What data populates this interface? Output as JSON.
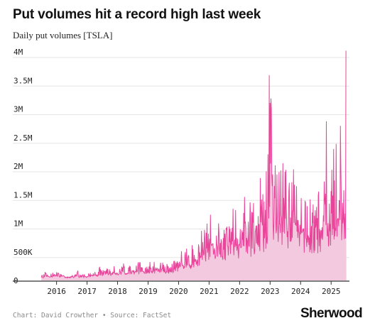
{
  "header": {
    "title": "Put volumes hit a record high last week",
    "subtitle": "Daily put volumes [TSLA]"
  },
  "footer": {
    "source": "Chart: David Crowther • Source: FactSet",
    "brand": "Sherwood"
  },
  "colors": {
    "line": "#e8449a",
    "area": "#f2c9de",
    "grid": "#e6e6e6",
    "axis": "#333333"
  },
  "chart_data": {
    "type": "area",
    "title": "Put volumes hit a record high last week",
    "subtitle": "Daily put volumes [TSLA]",
    "xlabel": "",
    "ylabel": "",
    "x_domain": [
      2015.45,
      2025.6
    ],
    "ylim": [
      0,
      4000000
    ],
    "yticks": [
      {
        "value": 0,
        "label": "0"
      },
      {
        "value": 500000,
        "label": "500K"
      },
      {
        "value": 1000000,
        "label": "1M"
      },
      {
        "value": 1500000,
        "label": "1.5M"
      },
      {
        "value": 2000000,
        "label": "2M"
      },
      {
        "value": 2500000,
        "label": "2.5M"
      },
      {
        "value": 3000000,
        "label": "3M"
      },
      {
        "value": 3500000,
        "label": "3.5M"
      },
      {
        "value": 4000000,
        "label": "4M"
      }
    ],
    "xticks": [
      {
        "value": 2016,
        "label": "2016"
      },
      {
        "value": 2017,
        "label": "2017"
      },
      {
        "value": 2018,
        "label": "2018"
      },
      {
        "value": 2019,
        "label": "2019"
      },
      {
        "value": 2020,
        "label": "2020"
      },
      {
        "value": 2021,
        "label": "2021"
      },
      {
        "value": 2022,
        "label": "2022"
      },
      {
        "value": 2023,
        "label": "2023"
      },
      {
        "value": 2024,
        "label": "2024"
      },
      {
        "value": 2025,
        "label": "2025"
      }
    ],
    "grid": true,
    "series": [
      {
        "x": [
          2015.5,
          2015.6,
          2015.7,
          2015.8,
          2015.9,
          2016.0,
          2016.1,
          2016.2,
          2016.3,
          2016.4,
          2016.5,
          2016.6,
          2016.7,
          2016.8,
          2016.9,
          2017.0,
          2017.1,
          2017.2,
          2017.3,
          2017.4,
          2017.5,
          2017.6,
          2017.7,
          2017.8,
          2017.9,
          2018.0,
          2018.1,
          2018.2,
          2018.3,
          2018.4,
          2018.5,
          2018.6,
          2018.7,
          2018.8,
          2018.9,
          2019.0,
          2019.1,
          2019.2,
          2019.3,
          2019.4,
          2019.5,
          2019.6,
          2019.7,
          2019.8,
          2019.9,
          2020.0,
          2020.1,
          2020.2,
          2020.3,
          2020.4,
          2020.5,
          2020.6,
          2020.7,
          2020.8,
          2020.9,
          2021.0,
          2021.1,
          2021.2,
          2021.3,
          2021.4,
          2021.5,
          2021.6,
          2021.7,
          2021.8,
          2021.9,
          2022.0,
          2022.1,
          2022.2,
          2022.3,
          2022.4,
          2022.5,
          2022.6,
          2022.7,
          2022.8,
          2022.9,
          2022.95,
          2023.0,
          2023.1,
          2023.2,
          2023.3,
          2023.4,
          2023.5,
          2023.6,
          2023.7,
          2023.8,
          2023.9,
          2024.0,
          2024.1,
          2024.2,
          2024.3,
          2024.4,
          2024.5,
          2024.6,
          2024.7,
          2024.8,
          2024.9,
          2025.0,
          2025.1,
          2025.2,
          2025.3,
          2025.35,
          2025.4,
          2025.45,
          2025.5
        ],
        "values": [
          60000,
          80000,
          90000,
          70000,
          110000,
          100000,
          80000,
          90000,
          70000,
          60000,
          80000,
          70000,
          90000,
          60000,
          80000,
          70000,
          90000,
          110000,
          100000,
          130000,
          110000,
          160000,
          120000,
          140000,
          130000,
          150000,
          170000,
          190000,
          160000,
          180000,
          200000,
          170000,
          230000,
          190000,
          160000,
          170000,
          180000,
          210000,
          190000,
          230000,
          200000,
          180000,
          170000,
          220000,
          230000,
          250000,
          330000,
          300000,
          350000,
          320000,
          380000,
          420000,
          470000,
          520000,
          560000,
          620000,
          700000,
          640000,
          690000,
          580000,
          620000,
          660000,
          720000,
          800000,
          780000,
          760000,
          820000,
          860000,
          900000,
          960000,
          880000,
          840000,
          1000000,
          1150000,
          1500000,
          1900000,
          2500000,
          1850000,
          1300000,
          1350000,
          1250000,
          1400000,
          1200000,
          1350000,
          1300000,
          1250000,
          1200000,
          1050000,
          1000000,
          1000000,
          950000,
          1050000,
          1100000,
          1150000,
          1300000,
          1250000,
          1350000,
          1250000,
          1300000,
          1350000,
          1500000,
          1250000,
          1400000,
          2600000
        ]
      }
    ],
    "envelope": {
      "x": [
        2015.5,
        2015.8,
        2016.0,
        2016.3,
        2016.6,
        2017.0,
        2017.3,
        2017.6,
        2017.9,
        2018.2,
        2018.6,
        2019.0,
        2019.4,
        2019.8,
        2020.2,
        2020.6,
        2021.0,
        2021.4,
        2021.8,
        2022.2,
        2022.6,
        2022.8,
        2022.9,
        2022.95,
        2023.05,
        2023.3,
        2023.6,
        2023.9,
        2024.2,
        2024.5,
        2024.8,
        2025.0,
        2025.2,
        2025.35,
        2025.45,
        2025.5
      ],
      "values": [
        40000,
        50000,
        60000,
        50000,
        55000,
        60000,
        80000,
        90000,
        90000,
        100000,
        110000,
        120000,
        130000,
        140000,
        170000,
        230000,
        300000,
        330000,
        380000,
        400000,
        420000,
        450000,
        480000,
        520000,
        550000,
        520000,
        500000,
        470000,
        450000,
        430000,
        430000,
        450000,
        460000,
        470000,
        470000,
        460000
      ]
    },
    "highlights": [
      {
        "x": 2023.0,
        "value": 3100000
      },
      {
        "x": 2024.85,
        "value": 2780000
      },
      {
        "x": 2025.3,
        "value": 2700000
      },
      {
        "x": 2025.5,
        "value": 4020000
      }
    ]
  }
}
